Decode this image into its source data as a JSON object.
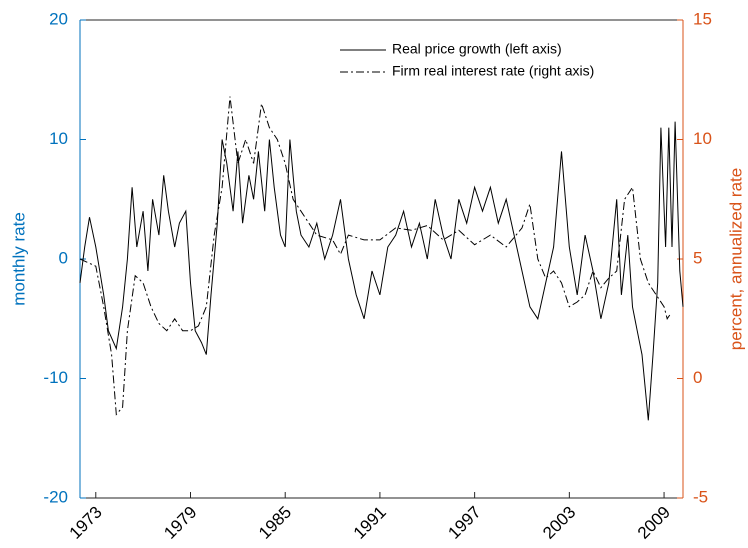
{
  "chart_data": {
    "type": "line",
    "y_label": "monthly rate",
    "y2_label": "percent, annualized rate",
    "xlim": [
      1972,
      2010.2
    ],
    "xticks": [
      1973,
      1979,
      1985,
      1991,
      1997,
      2003,
      2009
    ],
    "ylim": [
      -20,
      20
    ],
    "yticks": [
      -20,
      -10,
      0,
      10,
      20
    ],
    "y2lim": [
      -5,
      15
    ],
    "y2ticks": [
      -5,
      0,
      5,
      10,
      15
    ],
    "y_color": "#0072bd",
    "y2_color": "#d95319",
    "legend": "upper center",
    "series": [
      {
        "name": "Real price growth (left axis)",
        "color": "#000000",
        "linestyle": "solid",
        "axis": "y",
        "x": [
          1972.0,
          1972.3,
          1972.6,
          1973.0,
          1973.5,
          1973.8,
          1974.3,
          1974.7,
          1975.0,
          1975.3,
          1975.6,
          1976.0,
          1976.3,
          1976.6,
          1977.0,
          1977.3,
          1977.6,
          1978.0,
          1978.3,
          1978.7,
          1979.0,
          1979.3,
          1979.7,
          1980.0,
          1980.3,
          1980.7,
          1981.0,
          1981.3,
          1981.7,
          1982.0,
          1982.3,
          1982.7,
          1983.0,
          1983.3,
          1983.7,
          1984.0,
          1984.3,
          1984.7,
          1985.0,
          1985.3,
          1985.7,
          1986.0,
          1986.5,
          1987.0,
          1987.5,
          1988.0,
          1988.5,
          1989.0,
          1989.5,
          1990.0,
          1990.5,
          1991.0,
          1991.5,
          1992.0,
          1992.5,
          1993.0,
          1993.5,
          1994.0,
          1994.5,
          1995.0,
          1995.5,
          1996.0,
          1996.5,
          1997.0,
          1997.5,
          1998.0,
          1998.5,
          1999.0,
          1999.5,
          2000.0,
          2000.5,
          2001.0,
          2001.5,
          2002.0,
          2002.5,
          2003.0,
          2003.5,
          2004.0,
          2004.5,
          2005.0,
          2005.5,
          2006.0,
          2006.3,
          2006.7,
          2007.0,
          2007.3,
          2007.6,
          2008.0,
          2008.3,
          2008.6,
          2008.8,
          2009.1,
          2009.3,
          2009.5,
          2009.7,
          2010.0,
          2010.2
        ],
        "values": [
          -2,
          1,
          3.5,
          1,
          -3,
          -6,
          -7.5,
          -4,
          0,
          6,
          1,
          4,
          -1,
          5,
          2,
          7,
          4,
          1,
          3,
          4,
          -2,
          -6,
          -7,
          -8,
          -3,
          3,
          10,
          8,
          4,
          9,
          3,
          7,
          5,
          9,
          4,
          10,
          6,
          2,
          1,
          10,
          4,
          2,
          1,
          3,
          0,
          2,
          5,
          0,
          -3,
          -5,
          -1,
          -3,
          1,
          2,
          4,
          1,
          3,
          0,
          5,
          2,
          0,
          5,
          3,
          6,
          4,
          6,
          3,
          5,
          2,
          -1,
          -4,
          -5,
          -2,
          1,
          9,
          1,
          -3,
          2,
          -1,
          -5,
          -2,
          5,
          -3,
          2,
          -4,
          -6,
          -8,
          -13.5,
          -8,
          -2,
          11,
          1,
          11,
          1,
          11.5,
          -1,
          -4
        ]
      },
      {
        "name": "Firm real interest rate (right axis)",
        "color": "#000000",
        "linestyle": "dashdot",
        "axis": "y2",
        "x": [
          1972.0,
          1973.0,
          1973.5,
          1974.0,
          1974.3,
          1974.7,
          1975.0,
          1975.5,
          1976.0,
          1976.5,
          1977.0,
          1977.5,
          1978.0,
          1978.5,
          1979.0,
          1979.5,
          1980.0,
          1980.5,
          1981.0,
          1981.5,
          1982.0,
          1982.5,
          1983.0,
          1983.5,
          1984.0,
          1984.5,
          1985.0,
          1985.5,
          1986.0,
          1986.5,
          1987.0,
          1988.0,
          1988.5,
          1989.0,
          1990.0,
          1991.0,
          1992.0,
          1993.0,
          1994.0,
          1995.0,
          1996.0,
          1997.0,
          1998.0,
          1999.0,
          2000.0,
          2000.5,
          2001.0,
          2001.5,
          2002.0,
          2002.5,
          2003.0,
          2003.5,
          2004.0,
          2004.5,
          2005.0,
          2005.5,
          2006.0,
          2006.5,
          2007.0,
          2007.5,
          2008.0,
          2008.5,
          2009.0,
          2009.2,
          2009.4
        ],
        "values": [
          5,
          4.7,
          3,
          1,
          -1.5,
          -1.2,
          2,
          4.3,
          4,
          3,
          2.3,
          2,
          2.5,
          2,
          2,
          2.2,
          3,
          6,
          8,
          11.8,
          9,
          10,
          9,
          11.5,
          10.5,
          10,
          9,
          7.5,
          7,
          6.5,
          6,
          5.8,
          5.2,
          6,
          5.8,
          5.8,
          6.3,
          6.2,
          6.4,
          5.8,
          6.2,
          5.6,
          6,
          5.5,
          6.3,
          7.3,
          5,
          4.2,
          4.5,
          4,
          3,
          3.2,
          3.5,
          4.5,
          3.8,
          4.2,
          4.5,
          7.5,
          8,
          5,
          4,
          3.5,
          3,
          2.5,
          2.7
        ]
      }
    ]
  }
}
